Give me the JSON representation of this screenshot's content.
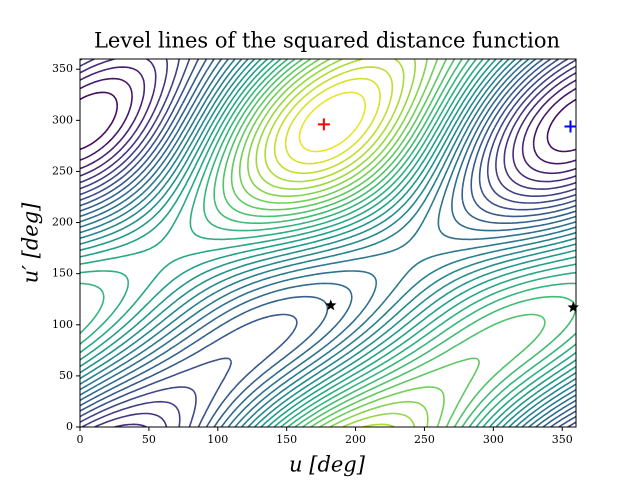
{
  "chart_data": {
    "type": "contour",
    "title": "Level lines of the squared distance function",
    "xlabel": "u [deg]",
    "ylabel": "u′ [deg]",
    "xlim": [
      0,
      360
    ],
    "ylim": [
      0,
      360
    ],
    "xticks": [
      0,
      50,
      100,
      150,
      200,
      250,
      300,
      350
    ],
    "yticks": [
      0,
      50,
      100,
      150,
      200,
      250,
      300,
      350
    ],
    "markers": [
      {
        "marker": "plus",
        "color": "#ff0000",
        "x": [
          177
        ],
        "y": [
          296
        ]
      },
      {
        "marker": "plus",
        "color": "#0000ff",
        "x": [
          356
        ],
        "y": [
          294
        ]
      },
      {
        "marker": "star",
        "color": "#000000",
        "x": [
          182,
          358
        ],
        "y": [
          119,
          117
        ]
      }
    ]
  }
}
